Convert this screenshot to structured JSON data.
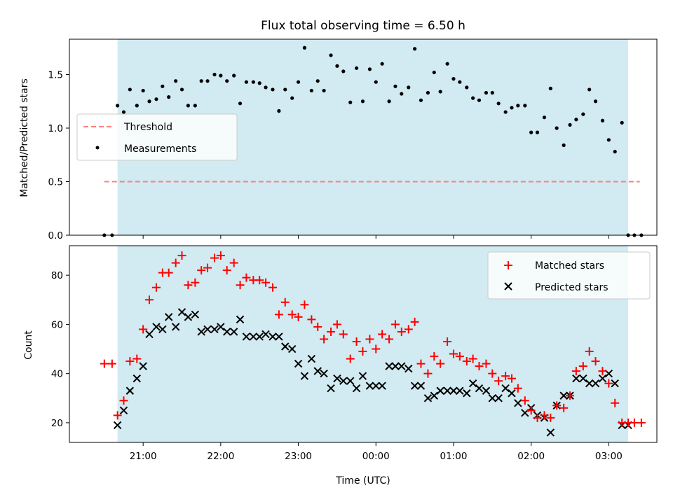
{
  "chart_data": [
    {
      "panel": "top",
      "type": "scatter",
      "title": "Flux total observing time = 6.50 h",
      "xlabel": "",
      "ylabel": "Matched/Predicted stars",
      "ylim": [
        0,
        1.83
      ],
      "yticks": [
        "0.0",
        "0.5",
        "1.0",
        "1.5"
      ],
      "ytick_values": [
        0,
        0.5,
        1.0,
        1.5
      ],
      "grid": false,
      "legend": "center-left",
      "observing_window": {
        "start": 20.67,
        "end": 3.25,
        "color": "#add8e6"
      },
      "threshold": {
        "name": "Threshold",
        "value": 0.5,
        "x_range": [
          20.5,
          3.4
        ],
        "color": "#ff7f7f"
      },
      "series": [
        {
          "name": "Measurements",
          "color": "#000000",
          "x": [
            20.5,
            20.6,
            20.67,
            20.75,
            20.83,
            20.92,
            21.0,
            21.08,
            21.17,
            21.25,
            21.33,
            21.42,
            21.5,
            21.58,
            21.67,
            21.75,
            21.83,
            21.92,
            22.0,
            22.08,
            22.17,
            22.25,
            22.33,
            22.42,
            22.5,
            22.58,
            22.67,
            22.75,
            22.83,
            22.92,
            23.0,
            23.08,
            23.17,
            23.25,
            23.33,
            23.42,
            23.5,
            23.58,
            23.67,
            23.75,
            23.83,
            23.92,
            24.0,
            24.08,
            24.17,
            24.25,
            24.33,
            24.42,
            24.5,
            24.58,
            24.67,
            24.75,
            24.83,
            24.92,
            25.0,
            25.08,
            25.17,
            25.25,
            25.33,
            25.42,
            25.5,
            25.58,
            25.67,
            25.75,
            25.83,
            25.92,
            26.0,
            26.08,
            26.17,
            26.25,
            26.33,
            26.42,
            26.5,
            26.58,
            26.67,
            26.75,
            26.83,
            26.92,
            27.0,
            27.08,
            27.17,
            27.25,
            27.33,
            27.42
          ],
          "y": [
            0.0,
            0.0,
            1.21,
            1.15,
            1.36,
            1.21,
            1.35,
            1.25,
            1.27,
            1.39,
            1.29,
            1.44,
            1.36,
            1.21,
            1.21,
            1.44,
            1.44,
            1.5,
            1.49,
            1.44,
            1.49,
            1.23,
            1.43,
            1.43,
            1.42,
            1.38,
            1.36,
            1.16,
            1.36,
            1.28,
            1.43,
            1.75,
            1.35,
            1.44,
            1.35,
            1.68,
            1.58,
            1.53,
            1.24,
            1.56,
            1.25,
            1.55,
            1.43,
            1.6,
            1.25,
            1.39,
            1.32,
            1.38,
            1.74,
            1.26,
            1.33,
            1.52,
            1.34,
            1.6,
            1.46,
            1.43,
            1.38,
            1.28,
            1.26,
            1.33,
            1.33,
            1.23,
            1.15,
            1.19,
            1.21,
            1.21,
            0.96,
            0.96,
            1.1,
            1.37,
            1.0,
            0.84,
            1.03,
            1.08,
            1.13,
            1.36,
            1.25,
            1.07,
            0.89,
            0.78,
            1.05,
            0.0,
            0.0,
            0.0
          ]
        }
      ],
      "xticks": [
        "21:00",
        "22:00",
        "23:00",
        "00:00",
        "01:00",
        "02:00",
        "03:00"
      ]
    },
    {
      "panel": "bottom",
      "type": "scatter",
      "title": "",
      "xlabel": "Time (UTC)",
      "ylabel": "Count",
      "ylim": [
        12,
        92
      ],
      "yticks": [
        "20",
        "40",
        "60",
        "80"
      ],
      "ytick_values": [
        20,
        40,
        60,
        80
      ],
      "grid": false,
      "legend": "top-right",
      "observing_window": {
        "start": 20.67,
        "end": 3.25,
        "color": "#add8e6"
      },
      "xticks": [
        "21:00",
        "22:00",
        "23:00",
        "00:00",
        "01:00",
        "02:00",
        "03:00"
      ],
      "xtick_values": [
        21,
        22,
        23,
        24,
        25,
        26,
        27
      ],
      "series": [
        {
          "name": "Matched stars",
          "marker": "plus",
          "color": "#ff0000",
          "x": [
            20.5,
            20.6,
            20.67,
            20.75,
            20.83,
            20.92,
            21.0,
            21.08,
            21.17,
            21.25,
            21.33,
            21.42,
            21.5,
            21.58,
            21.67,
            21.75,
            21.83,
            21.92,
            22.0,
            22.08,
            22.17,
            22.25,
            22.33,
            22.42,
            22.5,
            22.58,
            22.67,
            22.75,
            22.83,
            22.92,
            23.0,
            23.08,
            23.17,
            23.25,
            23.33,
            23.42,
            23.5,
            23.58,
            23.67,
            23.75,
            23.83,
            23.92,
            24.0,
            24.08,
            24.17,
            24.25,
            24.33,
            24.42,
            24.5,
            24.58,
            24.67,
            24.75,
            24.83,
            24.92,
            25.0,
            25.08,
            25.17,
            25.25,
            25.33,
            25.42,
            25.5,
            25.58,
            25.67,
            25.75,
            25.83,
            25.92,
            26.0,
            26.08,
            26.17,
            26.25,
            26.33,
            26.42,
            26.5,
            26.58,
            26.67,
            26.75,
            26.83,
            26.92,
            27.0,
            27.08,
            27.17,
            27.25,
            27.33,
            27.42
          ],
          "y": [
            44,
            44,
            23,
            29,
            45,
            46,
            58,
            70,
            75,
            81,
            81,
            85,
            88,
            76,
            77,
            82,
            83,
            87,
            88,
            82,
            85,
            76,
            79,
            78,
            78,
            77,
            75,
            64,
            69,
            64,
            63,
            68,
            62,
            59,
            54,
            57,
            60,
            56,
            46,
            53,
            49,
            54,
            50,
            56,
            54,
            60,
            57,
            58,
            61,
            44,
            40,
            47,
            44,
            53,
            48,
            47,
            45,
            46,
            43,
            44,
            40,
            37,
            39,
            38,
            34,
            29,
            25,
            22,
            23,
            22,
            27,
            26,
            31,
            41,
            43,
            49,
            45,
            41,
            36,
            28,
            20,
            20,
            20,
            20
          ]
        },
        {
          "name": "Predicted stars",
          "marker": "x",
          "color": "#000000",
          "x": [
            20.67,
            20.75,
            20.83,
            20.92,
            21.0,
            21.08,
            21.17,
            21.25,
            21.33,
            21.42,
            21.5,
            21.58,
            21.67,
            21.75,
            21.83,
            21.92,
            22.0,
            22.08,
            22.17,
            22.25,
            22.33,
            22.42,
            22.5,
            22.58,
            22.67,
            22.75,
            22.83,
            22.92,
            23.0,
            23.08,
            23.17,
            23.25,
            23.33,
            23.42,
            23.5,
            23.58,
            23.67,
            23.75,
            23.83,
            23.92,
            24.0,
            24.08,
            24.17,
            24.25,
            24.33,
            24.42,
            24.5,
            24.58,
            24.67,
            24.75,
            24.83,
            24.92,
            25.0,
            25.08,
            25.17,
            25.25,
            25.33,
            25.42,
            25.5,
            25.58,
            25.67,
            25.75,
            25.83,
            25.92,
            26.0,
            26.08,
            26.17,
            26.25,
            26.33,
            26.42,
            26.5,
            26.58,
            26.67,
            26.75,
            26.83,
            26.92,
            27.0,
            27.08,
            27.17,
            27.25
          ],
          "y": [
            19,
            25,
            33,
            38,
            43,
            56,
            59,
            58,
            63,
            59,
            65,
            63,
            64,
            57,
            58,
            58,
            59,
            57,
            57,
            62,
            55,
            55,
            55,
            56,
            55,
            55,
            51,
            50,
            44,
            39,
            46,
            41,
            40,
            34,
            38,
            37,
            37,
            34,
            39,
            35,
            35,
            35,
            43,
            43,
            43,
            42,
            35,
            35,
            30,
            31,
            33,
            33,
            33,
            33,
            32,
            36,
            34,
            33,
            30,
            30,
            34,
            32,
            28,
            24,
            26,
            23,
            22,
            16,
            27,
            31,
            31,
            38,
            38,
            36,
            36,
            38,
            40,
            36,
            19,
            19
          ]
        }
      ]
    }
  ]
}
